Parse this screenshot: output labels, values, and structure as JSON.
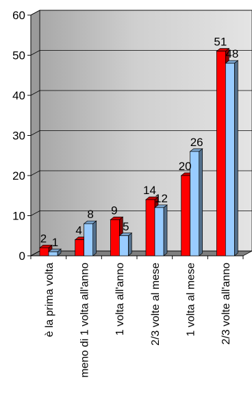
{
  "chart_data": {
    "type": "bar",
    "categories": [
      "è la prima volta",
      "meno di 1 volta all'anno",
      "1 volta all'anno",
      "2/3 volte al mese",
      "1 volta al mese",
      "2/3 volte all'anno"
    ],
    "series": [
      {
        "values": [
          2,
          4,
          9,
          14,
          20,
          51
        ],
        "color": "#ff0000"
      },
      {
        "values": [
          1,
          8,
          5,
          12,
          26,
          48
        ],
        "color": "#99ccff"
      }
    ],
    "ylim": [
      0,
      60
    ],
    "yticks": [
      0,
      10,
      20,
      30,
      40,
      50,
      60
    ],
    "grid": true,
    "legend": "none",
    "style": "3d-clustered-bar",
    "colors": {
      "wall": "#c0c0c0",
      "gridline": "#000000"
    }
  }
}
